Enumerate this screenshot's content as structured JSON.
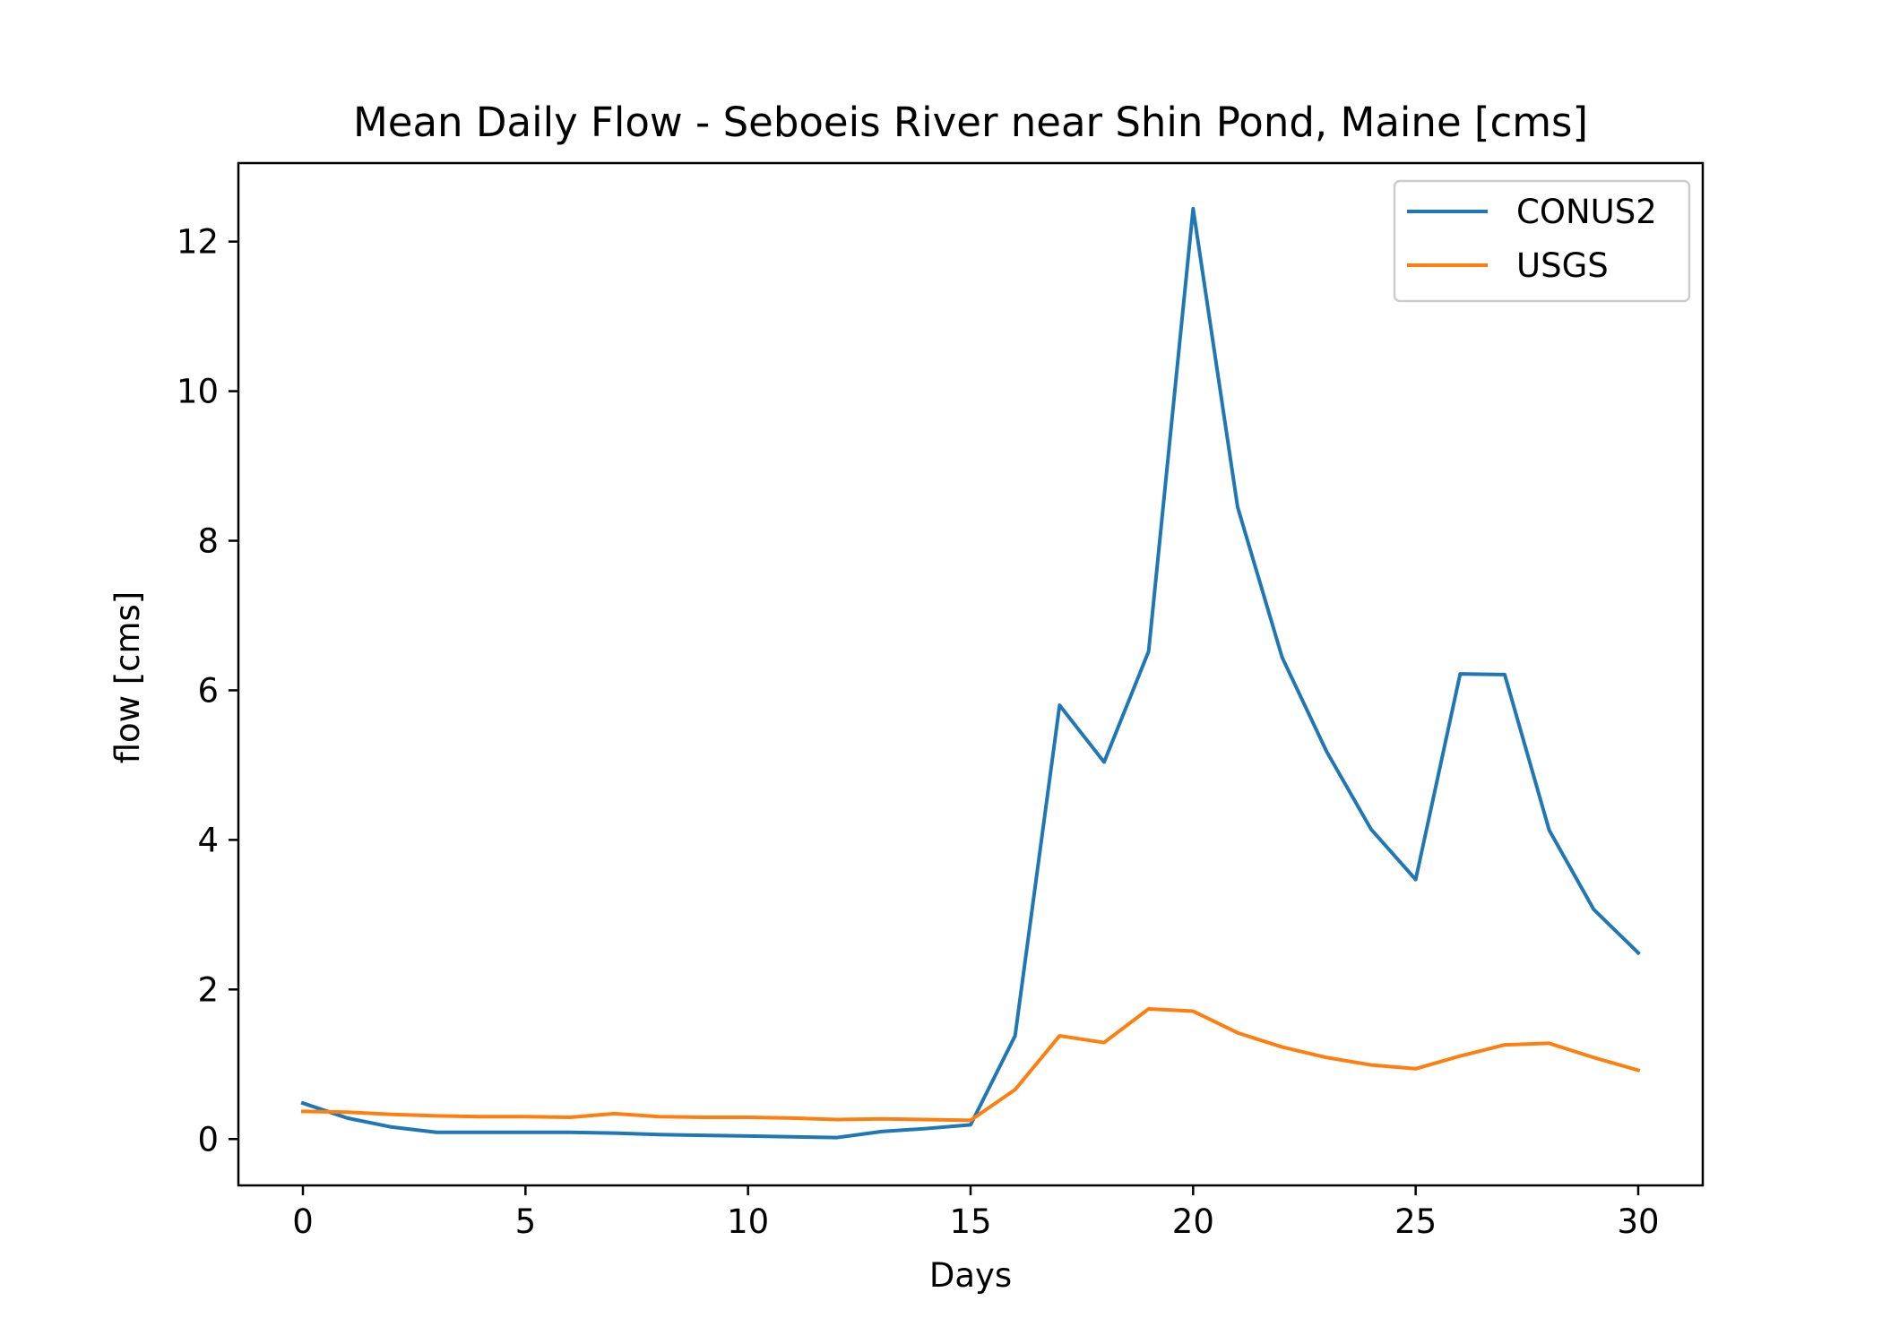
{
  "chart_data": {
    "type": "line",
    "title": "Mean Daily Flow - Seboeis River near Shin Pond, Maine [cms]",
    "xlabel": "Days",
    "ylabel": "flow [cms]",
    "xlim": [
      -1.45,
      31.45
    ],
    "ylim": [
      -0.62,
      13.05
    ],
    "xticks": [
      0,
      5,
      10,
      15,
      20,
      25,
      30
    ],
    "yticks": [
      0,
      2,
      4,
      6,
      8,
      10,
      12
    ],
    "grid": false,
    "legend_position": "upper right",
    "x": [
      0,
      1,
      2,
      3,
      4,
      5,
      6,
      7,
      8,
      9,
      10,
      11,
      12,
      13,
      14,
      15,
      16,
      17,
      18,
      19,
      20,
      21,
      22,
      23,
      24,
      25,
      26,
      27,
      28,
      29,
      30
    ],
    "series": [
      {
        "name": "CONUS2",
        "color": "#1f77b4",
        "values": [
          0.48,
          0.28,
          0.16,
          0.09,
          0.09,
          0.09,
          0.09,
          0.08,
          0.06,
          0.05,
          0.04,
          0.03,
          0.02,
          0.1,
          0.14,
          0.19,
          1.38,
          5.8,
          5.04,
          6.52,
          12.44,
          8.45,
          6.44,
          5.18,
          4.14,
          3.47,
          6.22,
          6.21,
          4.13,
          3.07,
          2.49
        ]
      },
      {
        "name": "USGS",
        "color": "#ff7f0e",
        "values": [
          0.37,
          0.36,
          0.33,
          0.31,
          0.3,
          0.3,
          0.29,
          0.34,
          0.3,
          0.29,
          0.29,
          0.28,
          0.26,
          0.27,
          0.26,
          0.25,
          0.66,
          1.38,
          1.29,
          1.74,
          1.71,
          1.42,
          1.23,
          1.09,
          0.99,
          0.94,
          1.11,
          1.26,
          1.28,
          1.09,
          0.92
        ]
      }
    ]
  }
}
